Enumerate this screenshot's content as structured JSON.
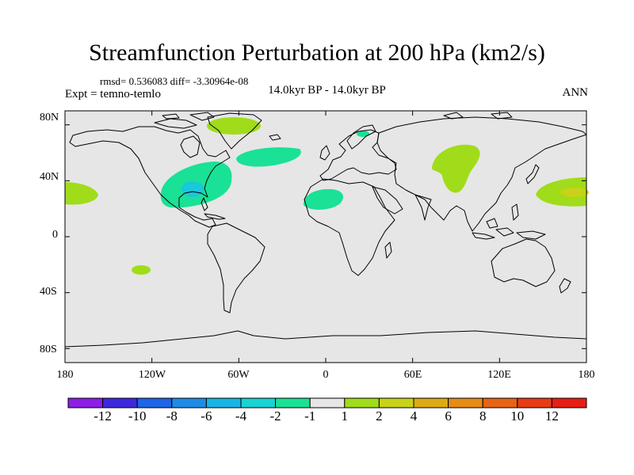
{
  "title": "Streamfunction Perturbation at 200 hPa (km2/s)",
  "stats": "rmsd= 0.536083 diff= -3.30964e-08",
  "experiment": "Expt = temno-temlo",
  "period": "14.0kyr BP - 14.0kyr BP",
  "season": "ANN",
  "map": {
    "lat_ticks": [
      "80N",
      "40N",
      "0",
      "40S",
      "80S"
    ],
    "lon_ticks": [
      "180",
      "120W",
      "60W",
      "0",
      "60E",
      "120E",
      "180"
    ],
    "ocean_color": "#e6e6e6",
    "coast_color": "#000000"
  },
  "colorbar": {
    "labels": [
      "-12",
      "-10",
      "-8",
      "-6",
      "-4",
      "-2",
      "-1",
      "1",
      "2",
      "4",
      "6",
      "8",
      "10",
      "12"
    ],
    "colors": [
      "#8c1ee6",
      "#3c28dc",
      "#1e64e6",
      "#1e8ce6",
      "#19b4e6",
      "#19d2d2",
      "#19e196",
      "#e6e6e6",
      "#a0dc19",
      "#c8d219",
      "#dcaa14",
      "#e68c14",
      "#e66414",
      "#e63c14",
      "#e61e14"
    ]
  },
  "chart_data": {
    "type": "heatmap",
    "title": "Streamfunction Perturbation at 200 hPa (km2/s)",
    "projection": "cylindrical equidistant",
    "lon_range": [
      -180,
      180
    ],
    "lat_range": [
      -90,
      90
    ],
    "contour_levels": [
      -12,
      -10,
      -8,
      -6,
      -4,
      -2,
      -1,
      1,
      2,
      4,
      6,
      8,
      10,
      12
    ],
    "anomalies": [
      {
        "region": "Greenland",
        "lon": -47,
        "lat": 77,
        "level": "1 to 2"
      },
      {
        "region": "Eastern US / Gulf",
        "lon": -85,
        "lat": 33,
        "level": "-2 to -1"
      },
      {
        "region": "Southeastern US core",
        "lon": -88,
        "lat": 32,
        "level": "-4 to -2"
      },
      {
        "region": "North Atlantic",
        "lon": -35,
        "lat": 52,
        "level": "-2 to -1"
      },
      {
        "region": "North Africa",
        "lon": -5,
        "lat": 23,
        "level": "-2 to -1"
      },
      {
        "region": "Scandinavia",
        "lon": 25,
        "lat": 70,
        "level": "-2 to -1"
      },
      {
        "region": "Central Asia",
        "lon": 97,
        "lat": 48,
        "level": "1 to 2"
      },
      {
        "region": "Northwest Pacific",
        "lon": 165,
        "lat": 30,
        "level": "1 to 2"
      },
      {
        "region": "Northwest Pacific core",
        "lon": 172,
        "lat": 30,
        "level": "2 to 4"
      },
      {
        "region": "Northeast Pacific",
        "lon": -170,
        "lat": 30,
        "level": "1 to 2"
      },
      {
        "region": "South Pacific",
        "lon": -127,
        "lat": -25,
        "level": "1 to 2"
      }
    ]
  }
}
